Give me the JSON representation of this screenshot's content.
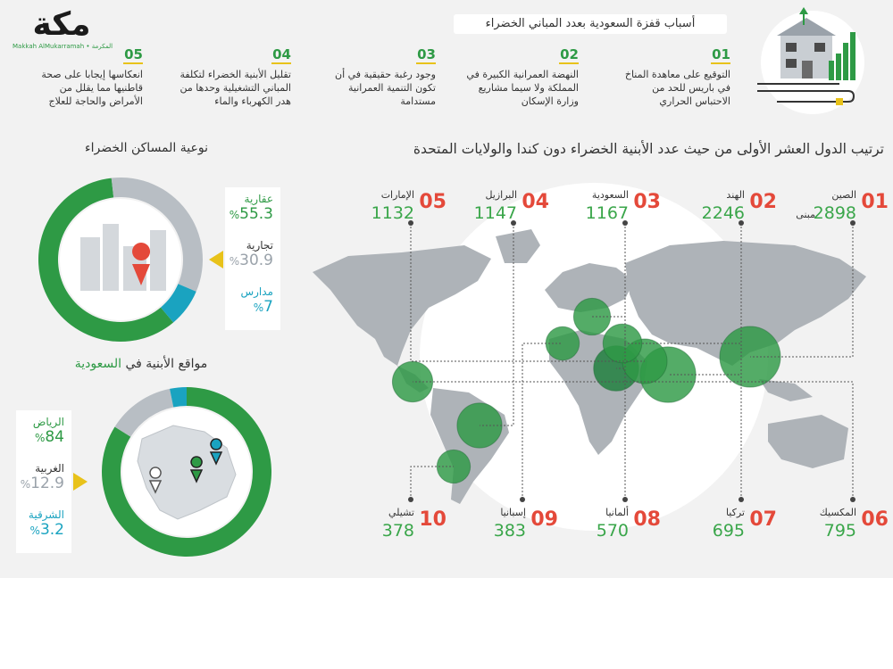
{
  "brand": {
    "logo_text": "مكة",
    "logo_sub": "Makkah AlMukarramah • المكرمة"
  },
  "header": {
    "title": "أسباب قفزة السعودية بعدد المباني الخضراء"
  },
  "reasons": [
    {
      "num": "01",
      "text": "التوقيع على معاهدة المناخ في باريس للحد من الاحتباس الحراري"
    },
    {
      "num": "02",
      "text": "النهضة العمرانية الكبيرة في المملكة ولا سيما مشاريع وزارة الإسكان"
    },
    {
      "num": "03",
      "text": "وجود رغبة حقيقية في أن تكون التنمية العمرانية مستدامة"
    },
    {
      "num": "04",
      "text": "تقليل الأبنية الخضراء لتكلفة المباني التشغيلية وحدها من هدر الكهرباء والماء"
    },
    {
      "num": "05",
      "text": "انعكاسها إيجابا على صحة قاطنيها مما يقلل من الأمراض والحاجة للعلاج"
    }
  ],
  "ranking": {
    "title": "ترتيب الدول العشر الأولى من حيث عدد الأبنية الخضراء دون كندا والولايات المتحدة",
    "unit": "مبنى",
    "countries": [
      {
        "rank": "01",
        "name": "الصين",
        "value": "2898"
      },
      {
        "rank": "02",
        "name": "الهند",
        "value": "2246"
      },
      {
        "rank": "03",
        "name": "السعودية",
        "value": "1167"
      },
      {
        "rank": "04",
        "name": "البرازيل",
        "value": "1147"
      },
      {
        "rank": "05",
        "name": "الإمارات",
        "value": "1132"
      },
      {
        "rank": "06",
        "name": "المكسيك",
        "value": "795"
      },
      {
        "rank": "07",
        "name": "تركيا",
        "value": "695"
      },
      {
        "rank": "08",
        "name": "ألمانيا",
        "value": "570"
      },
      {
        "rank": "09",
        "name": "إسبانيا",
        "value": "383"
      },
      {
        "rank": "10",
        "name": "تشيلي",
        "value": "378"
      }
    ]
  },
  "housing": {
    "title": "نوعية المساكن الخضراء",
    "items": [
      {
        "label": "عقارية",
        "value": "55.3",
        "pct": "%",
        "color": "#2e9a45",
        "share": 55.3
      },
      {
        "label": "تجارية",
        "value": "30.9",
        "pct": "%",
        "color": "#b8bec4",
        "share": 30.9
      },
      {
        "label": "مدارس",
        "value": "7",
        "pct": "%",
        "color": "#1aa3c0",
        "share": 7
      }
    ]
  },
  "locations": {
    "title_main": "مواقع الأبنية في",
    "title_highlight": "السعودية",
    "items": [
      {
        "label": "الرياض",
        "value": "84",
        "pct": "%",
        "color": "#2e9a45",
        "share": 84
      },
      {
        "label": "الغربية",
        "value": "12.9",
        "pct": "%",
        "color": "#b8bec4",
        "share": 12.9
      },
      {
        "label": "الشرقية",
        "value": "3.2",
        "pct": "%",
        "color": "#1aa3c0",
        "share": 3.2
      }
    ]
  },
  "colors": {
    "green": "#2e9a45",
    "red": "#e4493a",
    "teal": "#1aa3c0",
    "gray": "#b8bec4",
    "yellow": "#e8c21a"
  },
  "icons": {
    "header_art": "green-building-icon",
    "map_pin": "map-pin-icon",
    "triangle": "pointer-triangle-icon"
  }
}
